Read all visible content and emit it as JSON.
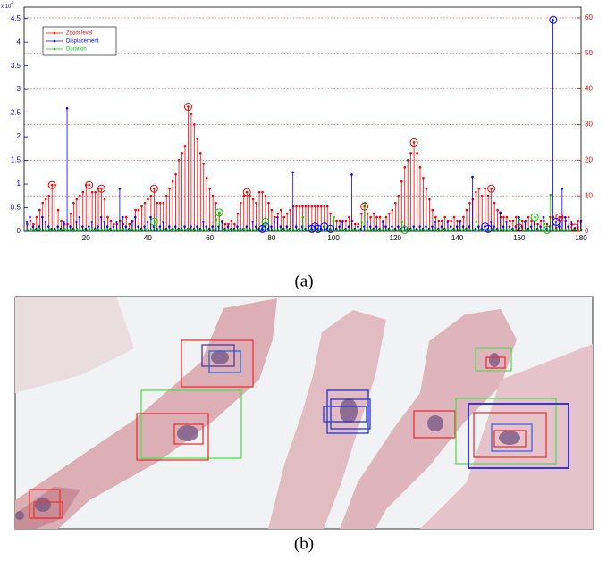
{
  "chart_data": {
    "type": "stem",
    "y_multiplier": {
      "base": "x 10",
      "exponent": "4"
    },
    "xlim": [
      0,
      180
    ],
    "xticks": [
      20,
      40,
      60,
      80,
      100,
      120,
      140,
      160,
      180
    ],
    "ylim": [
      0,
      47400
    ],
    "yticks": [
      0,
      {
        "value": 5000,
        "label": "0.5"
      },
      {
        "value": 10000,
        "label": "1"
      },
      {
        "value": 15000,
        "label": "1.5"
      },
      {
        "value": 20000,
        "label": "2"
      },
      {
        "value": 25000,
        "label": "2.5"
      },
      {
        "value": 30000,
        "label": "3"
      },
      {
        "value": 35000,
        "label": "3.5"
      },
      {
        "value": 40000,
        "label": "4"
      },
      {
        "value": 45000,
        "label": "4.5"
      }
    ],
    "y_color": "#0000ff",
    "y2lim": [
      0,
      63
    ],
    "y2ticks": [
      0,
      10,
      20,
      30,
      40,
      50,
      60
    ],
    "y2_color": "#ff0000",
    "grid": true,
    "grid_axis": "y2",
    "legend": "upper left",
    "x": [
      1,
      2,
      3,
      4,
      5,
      6,
      7,
      8,
      9,
      10,
      11,
      12,
      13,
      14,
      15,
      16,
      17,
      18,
      19,
      20,
      21,
      22,
      23,
      24,
      25,
      26,
      27,
      28,
      29,
      30,
      31,
      32,
      33,
      34,
      35,
      36,
      37,
      38,
      39,
      40,
      41,
      42,
      43,
      44,
      45,
      46,
      47,
      48,
      49,
      50,
      51,
      52,
      53,
      54,
      55,
      56,
      57,
      58,
      59,
      60,
      61,
      62,
      63,
      64,
      65,
      66,
      67,
      68,
      69,
      70,
      71,
      72,
      73,
      74,
      75,
      76,
      77,
      78,
      79,
      80,
      81,
      82,
      83,
      84,
      85,
      86,
      87,
      88,
      89,
      90,
      91,
      92,
      93,
      94,
      95,
      96,
      97,
      98,
      99,
      100,
      101,
      102,
      103,
      104,
      105,
      106,
      107,
      108,
      109,
      110,
      111,
      112,
      113,
      114,
      115,
      116,
      117,
      118,
      119,
      120,
      121,
      122,
      123,
      124,
      125,
      126,
      127,
      128,
      129,
      130,
      131,
      132,
      133,
      134,
      135,
      136,
      137,
      138,
      139,
      140,
      141,
      142,
      143,
      144,
      145,
      146,
      147,
      148,
      149,
      150,
      151,
      152,
      153,
      154,
      155,
      156,
      157,
      158,
      159,
      160,
      161,
      162,
      163,
      164,
      165,
      166,
      167,
      168,
      169,
      170,
      171,
      172,
      173,
      174,
      175,
      176,
      177,
      178,
      179,
      180
    ],
    "series": [
      {
        "name": "Zoom level",
        "color": "#ff0000",
        "axis": "y2",
        "circled": [
          9,
          21,
          25,
          42,
          53,
          72,
          110,
          126,
          151,
          160,
          173,
          178
        ],
        "values": [
          2,
          3,
          2,
          4,
          6,
          8,
          9,
          10,
          13,
          13,
          6,
          3,
          2,
          2,
          5,
          8,
          9,
          10,
          11,
          13,
          13,
          11,
          11,
          12,
          12,
          9,
          4,
          3,
          2,
          2,
          3,
          2,
          4,
          2,
          3,
          6,
          6,
          7,
          8,
          9,
          10,
          12,
          8,
          8,
          8,
          10,
          12,
          14,
          16,
          20,
          22,
          24,
          35,
          33,
          30,
          26,
          22,
          19,
          15,
          12,
          10,
          8,
          5,
          3,
          2,
          2,
          3,
          2,
          5,
          8,
          10,
          11,
          10,
          9,
          8,
          11,
          11,
          10,
          8,
          6,
          4,
          5,
          6,
          4,
          5,
          6,
          7,
          7,
          7,
          7,
          7,
          7,
          7,
          7,
          7,
          7,
          7,
          7,
          5,
          3,
          3,
          3,
          3,
          3,
          4,
          3,
          2,
          2,
          5,
          7,
          5,
          4,
          5,
          4,
          4,
          3,
          4,
          5,
          6,
          8,
          10,
          14,
          18,
          20,
          22,
          25,
          22,
          18,
          15,
          12,
          9,
          6,
          4,
          3,
          3,
          4,
          3,
          3,
          4,
          3,
          3,
          4,
          6,
          8,
          9,
          11,
          12,
          10,
          12,
          10,
          12,
          8,
          6,
          4,
          4,
          4,
          3,
          3,
          4,
          1,
          3,
          3,
          4,
          3,
          2,
          2,
          3,
          3,
          2,
          4,
          4,
          1,
          4,
          4,
          3,
          4,
          2,
          1,
          3,
          3
        ]
      },
      {
        "name": "Displacement",
        "color": "#0000ff",
        "circled": [
          77,
          78,
          93,
          94,
          95,
          97,
          99,
          149,
          150,
          171,
          172
        ],
        "values": [
          2000,
          3000,
          1000,
          500,
          1000,
          3000,
          2000,
          1000,
          500,
          500,
          1000,
          500,
          2000,
          26000,
          1000,
          500,
          2000,
          3000,
          1000,
          500,
          1000,
          2000,
          500,
          1000,
          3000,
          2000,
          1000,
          500,
          1000,
          2000,
          9000,
          3000,
          1000,
          500,
          2000,
          3000,
          1000,
          500,
          1000,
          2000,
          3000,
          1000,
          500,
          1000,
          2000,
          500,
          1000,
          500,
          1000,
          500,
          500,
          1000,
          500,
          1000,
          500,
          1000,
          500,
          2000,
          1000,
          500,
          1000,
          500,
          1000,
          2000,
          500,
          1000,
          500,
          500,
          1000,
          500,
          500,
          1000,
          500,
          2000,
          1000,
          500,
          500,
          1000,
          500,
          1000,
          2000,
          3000,
          1000,
          500,
          1000,
          500,
          12500,
          1000,
          500,
          1000,
          500,
          1000,
          500,
          1000,
          500,
          500,
          1000,
          500,
          500,
          1000,
          500,
          1000,
          2000,
          500,
          1000,
          12000,
          500,
          1000,
          500,
          1000,
          2000,
          1000,
          500,
          1000,
          500,
          2000,
          1000,
          500,
          1000,
          500,
          1000,
          500,
          1000,
          500,
          500,
          1000,
          500,
          1000,
          500,
          1000,
          500,
          1000,
          2000,
          500,
          1000,
          500,
          2000,
          1000,
          500,
          1000,
          2000,
          1000,
          500,
          1000,
          11500,
          500,
          1000,
          500,
          1000,
          500,
          2000,
          1000,
          500,
          4000,
          1000,
          2000,
          1000,
          500,
          1000,
          3000,
          1000,
          2000,
          500,
          1000,
          2000,
          500,
          1000,
          3000,
          500,
          1000,
          44700,
          2000,
          1000,
          9000,
          3000,
          1000,
          2000,
          500,
          1000,
          2000
        ]
      },
      {
        "name": "Duration",
        "color": "#00cc00",
        "circled": [
          42,
          63,
          78,
          123,
          165,
          169
        ],
        "values": [
          300,
          500,
          300,
          300,
          500,
          300,
          300,
          500,
          300,
          300,
          300,
          300,
          500,
          300,
          300,
          300,
          500,
          300,
          300,
          300,
          500,
          300,
          300,
          300,
          300,
          500,
          300,
          300,
          300,
          300,
          300,
          500,
          300,
          300,
          300,
          300,
          300,
          300,
          500,
          300,
          300,
          2000,
          300,
          300,
          300,
          300,
          300,
          500,
          300,
          300,
          300,
          300,
          500,
          300,
          300,
          300,
          300,
          300,
          300,
          300,
          300,
          2500,
          4000,
          300,
          300,
          300,
          300,
          300,
          300,
          300,
          500,
          300,
          300,
          300,
          300,
          300,
          1000,
          2000,
          300,
          300,
          300,
          300,
          300,
          300,
          300,
          300,
          300,
          300,
          300,
          3000,
          300,
          300,
          300,
          300,
          300,
          300,
          1000,
          300,
          300,
          3000,
          300,
          300,
          300,
          300,
          300,
          300,
          300,
          300,
          2000,
          6000,
          300,
          300,
          300,
          300,
          300,
          300,
          300,
          300,
          300,
          300,
          300,
          2000,
          300,
          300,
          300,
          300,
          300,
          300,
          300,
          300,
          300,
          300,
          300,
          300,
          300,
          300,
          300,
          300,
          300,
          300,
          300,
          300,
          300,
          300,
          300,
          2000,
          300,
          300,
          300,
          300,
          300,
          300,
          300,
          300,
          300,
          300,
          300,
          300,
          300,
          2500,
          300,
          300,
          300,
          300,
          3000,
          300,
          300,
          1500,
          300,
          7700,
          300,
          300,
          300,
          300,
          300,
          300,
          300,
          300,
          300,
          300
        ]
      }
    ]
  },
  "figure": {
    "captions": [
      "(a)",
      "(b)"
    ]
  }
}
